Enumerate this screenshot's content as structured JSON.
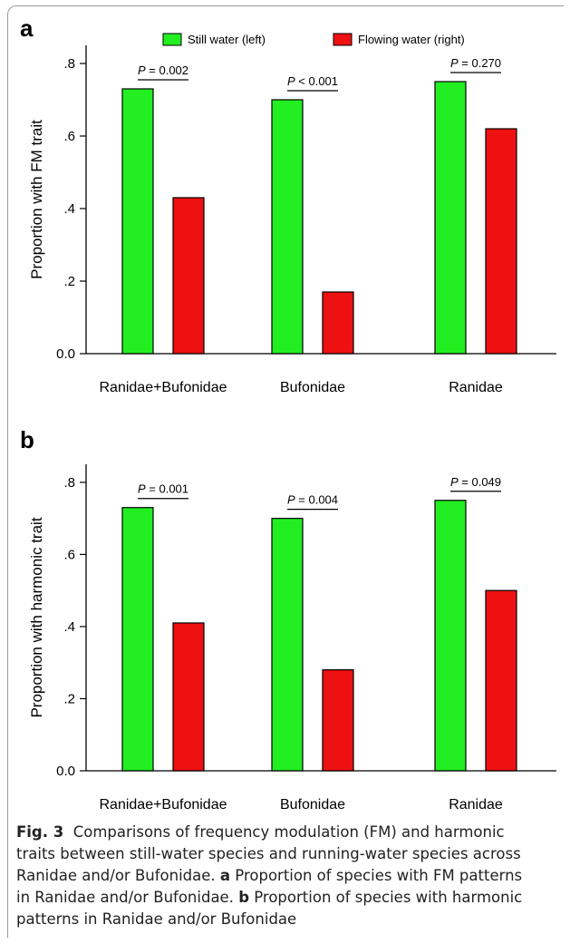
{
  "legend": {
    "still": {
      "label": "Still water (left)",
      "color": "#22ee22"
    },
    "flowing": {
      "label": "Flowing water (right)",
      "color": "#ee1111"
    }
  },
  "chart_data": [
    {
      "type": "bar",
      "panel": "a",
      "ylabel": "Proportion with FM trait",
      "ylim": [
        0,
        0.85
      ],
      "yticks": [
        0.0,
        0.2,
        0.4,
        0.6,
        0.8
      ],
      "ytick_labels": [
        "0.0",
        ".2",
        ".4",
        ".6",
        ".8"
      ],
      "categories": [
        "Ranidae+Bufonidae",
        "Bufonidae",
        "Ranidae"
      ],
      "series": [
        {
          "name": "Still water (left)",
          "values": [
            0.73,
            0.7,
            0.75
          ]
        },
        {
          "name": "Flowing water (right)",
          "values": [
            0.43,
            0.17,
            0.62
          ]
        }
      ],
      "annotations": [
        {
          "prefix": "P",
          "text": " = 0.002"
        },
        {
          "prefix": "P",
          "text": " < 0.001"
        },
        {
          "prefix": "P",
          "text": " = 0.270"
        }
      ],
      "legend_position": "top"
    },
    {
      "type": "bar",
      "panel": "b",
      "ylabel": "Proportion with harmonic trait",
      "ylim": [
        0,
        0.85
      ],
      "yticks": [
        0.0,
        0.2,
        0.4,
        0.6,
        0.8
      ],
      "ytick_labels": [
        "0.0",
        ".2",
        ".4",
        ".6",
        ".8"
      ],
      "categories": [
        "Ranidae+Bufonidae",
        "Bufonidae",
        "Ranidae"
      ],
      "series": [
        {
          "name": "Still water (left)",
          "values": [
            0.73,
            0.7,
            0.75
          ]
        },
        {
          "name": "Flowing water (right)",
          "values": [
            0.41,
            0.28,
            0.5
          ]
        }
      ],
      "annotations": [
        {
          "prefix": "P",
          "text": " = 0.001"
        },
        {
          "prefix": "P",
          "text": " = 0.004"
        },
        {
          "prefix": "P",
          "text": " = 0.049"
        }
      ]
    }
  ],
  "caption": {
    "label": "Fig. 3",
    "lines": [
      {
        "parts": [
          {
            "bold": true,
            "text": "Fig. 3"
          },
          {
            "text": "  Comparisons of frequency modulation (FM) and harmonic"
          }
        ]
      },
      {
        "parts": [
          {
            "text": "traits between still-water species and running-water species across"
          }
        ]
      },
      {
        "parts": [
          {
            "text": "Ranidae and/or Bufonidae. "
          },
          {
            "bold": true,
            "text": "a"
          },
          {
            "text": " Proportion of species with FM patterns"
          }
        ]
      },
      {
        "parts": [
          {
            "text": "in Ranidae and/or Bufonidae. "
          },
          {
            "bold": true,
            "text": "b"
          },
          {
            "text": " Proportion of species with harmonic"
          }
        ]
      },
      {
        "parts": [
          {
            "text": "patterns in Ranidae and/or Bufonidae"
          }
        ]
      }
    ]
  }
}
